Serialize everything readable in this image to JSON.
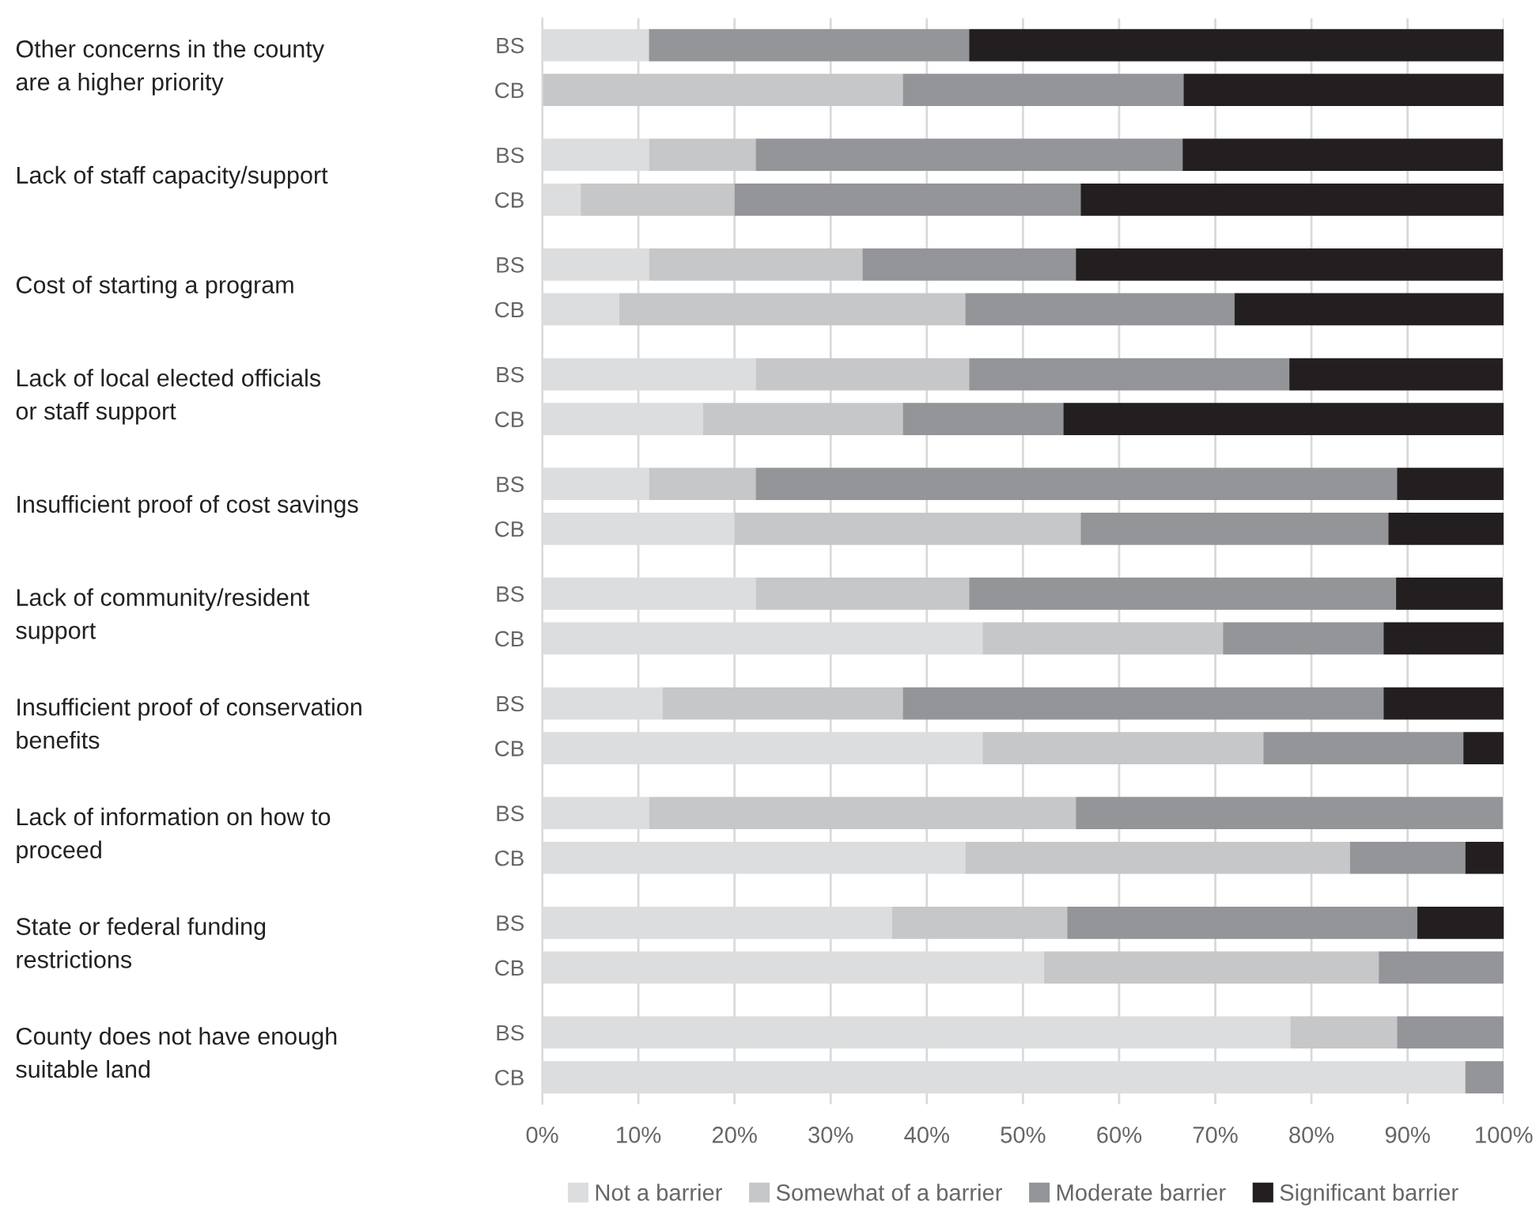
{
  "chart_data": {
    "type": "bar",
    "orientation": "horizontal",
    "stacked": true,
    "categories": [
      "BS",
      "CB",
      "BS",
      "CB",
      "BS",
      "CB",
      "BS",
      "CB",
      "BS",
      "CB",
      "BS",
      "CB",
      "BS",
      "CB",
      "BS",
      "CB",
      "BS",
      "CB",
      "BS",
      "CB"
    ],
    "series": [
      {
        "name": "Not a barrier",
        "color": "#dcdddf",
        "values": [
          11.1,
          0,
          11.1,
          4,
          11.1,
          8,
          22.2,
          16.7,
          11.1,
          20,
          22.2,
          45.8,
          12.5,
          45.8,
          11.1,
          44,
          36.4,
          52.2,
          77.8,
          96
        ]
      },
      {
        "name": "Somewhat of a barrier",
        "color": "#c6c7c9",
        "values": [
          0,
          37.5,
          11.1,
          16,
          22.2,
          36,
          22.2,
          20.8,
          11.1,
          36,
          22.2,
          25,
          25,
          29.2,
          44.4,
          40,
          18.2,
          34.8,
          11.1,
          0
        ]
      },
      {
        "name": "Moderate barrier",
        "color": "#939598",
        "values": [
          33.3,
          29.2,
          44.4,
          36,
          22.2,
          28,
          33.3,
          16.7,
          66.7,
          32,
          44.4,
          16.7,
          50,
          20.8,
          44.4,
          12,
          36.4,
          13,
          11.1,
          4
        ]
      },
      {
        "name": "Significant barrier",
        "color": "#231f20",
        "values": [
          55.6,
          33.3,
          33.3,
          44,
          44.4,
          28,
          22.2,
          45.8,
          11.1,
          12,
          11.1,
          12.5,
          12.5,
          4.2,
          0,
          4,
          9.1,
          0,
          0,
          0
        ]
      }
    ],
    "annotations": [
      "Other concerns in the county\nare a higher priority",
      "Lack of staff capacity/support",
      "Cost of starting a program",
      "Lack of local elected officials\nor staff support",
      "Insufficient proof of cost savings",
      "Lack of community/resident\nsupport",
      "Insufficient proof of conservation\nbenefits",
      "Lack of information on how to\nproceed",
      "State or federal funding\nrestrictions",
      "County does not have enough\nsuitable land"
    ],
    "xlim": [
      0,
      100
    ],
    "xticks": [
      {
        "value": 0,
        "label": "0%"
      },
      {
        "value": 10,
        "label": "10%"
      },
      {
        "value": 20,
        "label": "20%"
      },
      {
        "value": 30,
        "label": "30%"
      },
      {
        "value": 40,
        "label": "40%"
      },
      {
        "value": 50,
        "label": "50%"
      },
      {
        "value": 60,
        "label": "60%"
      },
      {
        "value": 70,
        "label": "70%"
      },
      {
        "value": 80,
        "label": "80%"
      },
      {
        "value": 90,
        "label": "90%"
      },
      {
        "value": 100,
        "label": "100%"
      }
    ],
    "grid": "x",
    "legend": "bottom"
  }
}
